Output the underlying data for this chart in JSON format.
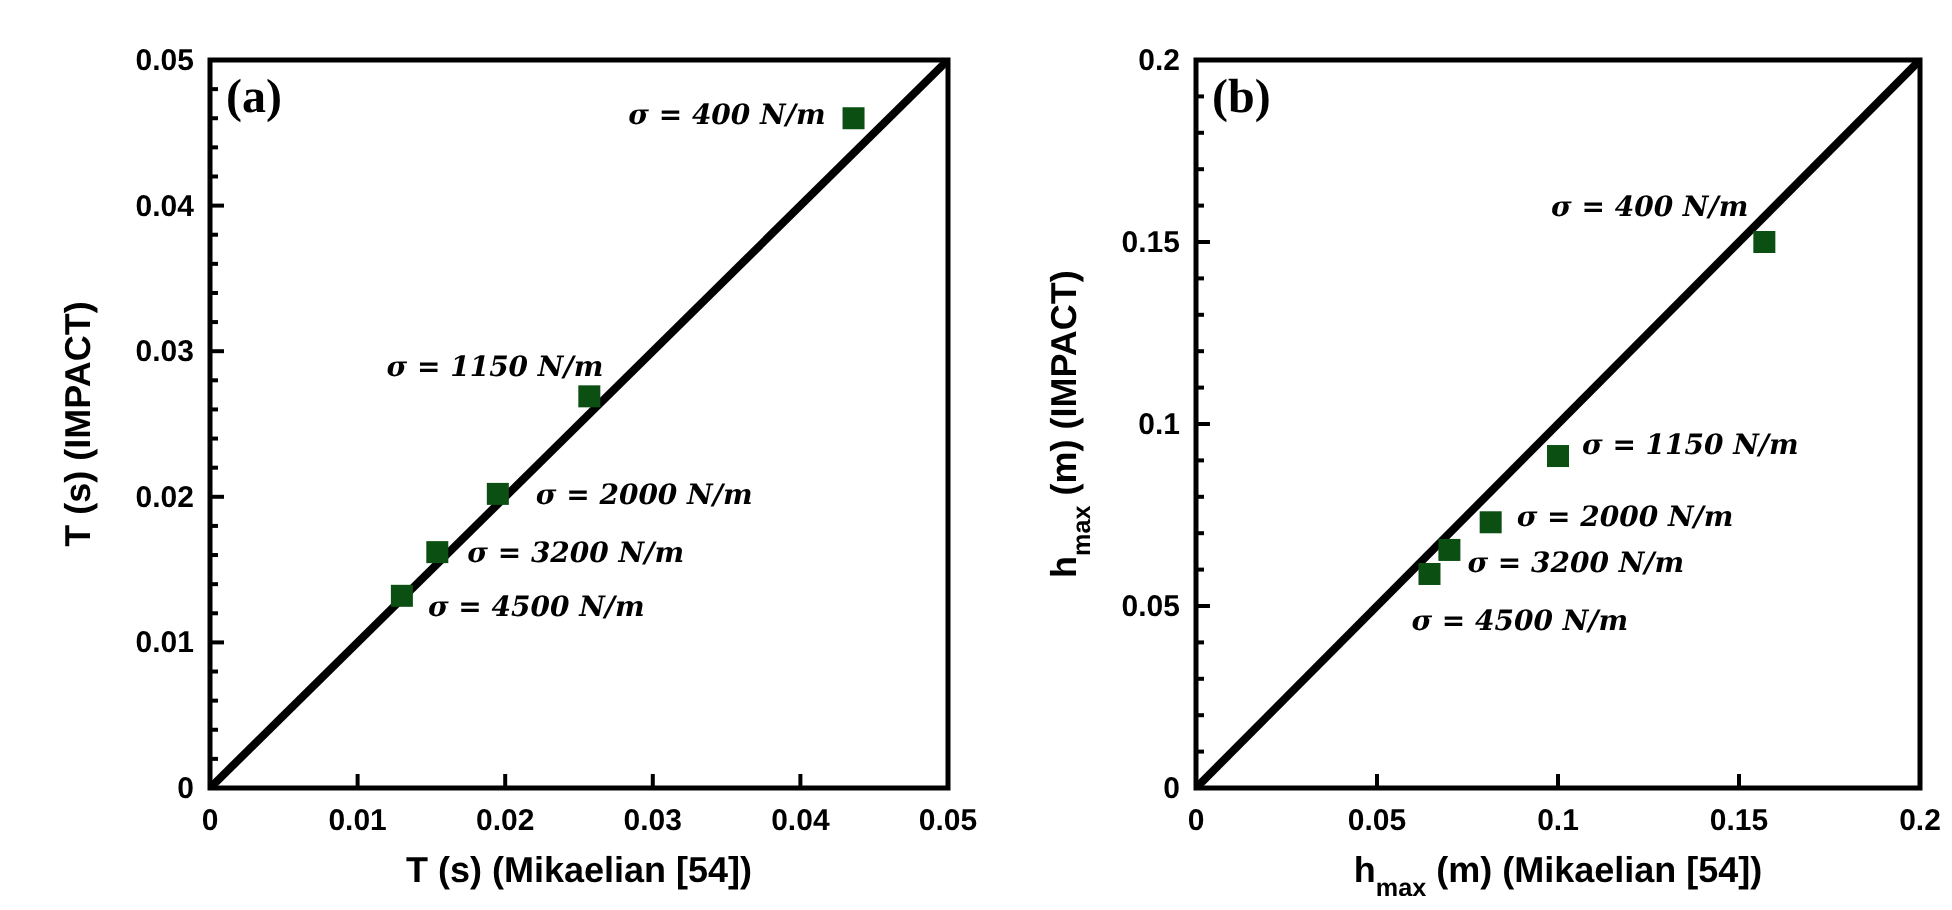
{
  "chart_data": [
    {
      "type": "scatter",
      "xlabel": "T (s) (Mikaelian [54])",
      "ylabel": "T (s) (IMPACT)",
      "xlim": [
        0,
        0.05
      ],
      "ylim": [
        0,
        0.05
      ],
      "xticks": [
        0,
        0.01,
        0.02,
        0.03,
        0.04,
        0.05
      ],
      "yticks": [
        0,
        {
          "value": 0.002,
          "label": null
        },
        {
          "value": 0.004,
          "label": null
        },
        {
          "value": 0.006,
          "label": null
        },
        {
          "value": 0.008,
          "label": null
        },
        0.01,
        {
          "value": 0.012,
          "label": null
        },
        {
          "value": 0.014,
          "label": null
        },
        {
          "value": 0.016,
          "label": null
        },
        {
          "value": 0.018,
          "label": null
        },
        0.02,
        {
          "value": 0.022,
          "label": null
        },
        {
          "value": 0.024,
          "label": null
        },
        {
          "value": 0.026,
          "label": null
        },
        {
          "value": 0.028,
          "label": null
        },
        0.03,
        {
          "value": 0.032,
          "label": null
        },
        {
          "value": 0.034,
          "label": null
        },
        {
          "value": 0.036,
          "label": null
        },
        {
          "value": 0.038,
          "label": null
        },
        0.04,
        {
          "value": 0.042,
          "label": null
        },
        {
          "value": 0.044,
          "label": null
        },
        {
          "value": 0.046,
          "label": null
        },
        {
          "value": 0.048,
          "label": null
        },
        0.05
      ],
      "grid": false,
      "series": [
        {
          "type": "line",
          "color": "#000000",
          "x": [
            0,
            0.05
          ],
          "values": [
            0,
            0.05
          ]
        },
        {
          "marker": "square",
          "color": "#0b5012",
          "x": [
            0.0436,
            0.0257,
            0.0195,
            0.0154,
            0.013
          ],
          "values": [
            0.046,
            0.0269,
            0.0202,
            0.0162,
            0.0132
          ]
        }
      ],
      "annotations": [
        "(a)",
        {
          "text": "σ = 400 N/m",
          "x": 0.0436,
          "y": 0.046
        },
        {
          "text": "σ = 1150 N/m",
          "x": 0.0257,
          "y": 0.0269
        },
        {
          "text": "σ = 2000 N/m",
          "x": 0.0195,
          "y": 0.0202
        },
        {
          "text": "σ = 3200 N/m",
          "x": 0.0154,
          "y": 0.0162
        },
        {
          "text": "σ = 4500 N/m",
          "x": 0.013,
          "y": 0.0132
        }
      ]
    },
    {
      "type": "scatter",
      "xlabel": "h$_{max}$ (m) (Mikaelian [54])",
      "ylabel": "h$_{max}$ (m) (IMPACT)",
      "xlim": [
        0,
        0.2
      ],
      "ylim": [
        0,
        0.2
      ],
      "xticks": [
        0,
        0.05,
        0.1,
        0.15,
        0.2
      ],
      "yticks": [
        0,
        {
          "value": 0.01,
          "label": null
        },
        {
          "value": 0.02,
          "label": null
        },
        {
          "value": 0.03,
          "label": null
        },
        {
          "value": 0.04,
          "label": null
        },
        0.05,
        {
          "value": 0.06,
          "label": null
        },
        {
          "value": 0.07,
          "label": null
        },
        {
          "value": 0.08,
          "label": null
        },
        {
          "value": 0.09,
          "label": null
        },
        0.1,
        {
          "value": 0.11,
          "label": null
        },
        {
          "value": 0.12,
          "label": null
        },
        {
          "value": 0.13,
          "label": null
        },
        {
          "value": 0.14,
          "label": null
        },
        0.15,
        {
          "value": 0.16,
          "label": null
        },
        {
          "value": 0.17,
          "label": null
        },
        {
          "value": 0.18,
          "label": null
        },
        {
          "value": 0.19,
          "label": null
        },
        0.2
      ],
      "grid": false,
      "series": [
        {
          "type": "line",
          "color": "#000000",
          "x": [
            0,
            0.2
          ],
          "values": [
            0,
            0.2
          ]
        },
        {
          "marker": "square",
          "color": "#0b5012",
          "x": [
            0.157,
            0.1,
            0.0814,
            0.07,
            0.0645
          ],
          "values": [
            0.15,
            0.0912,
            0.073,
            0.0654,
            0.0588
          ]
        }
      ],
      "annotations": [
        "(b)",
        {
          "text": "σ = 400 N/m",
          "x": 0.157,
          "y": 0.15
        },
        {
          "text": "σ = 1150 N/m",
          "x": 0.1,
          "y": 0.0912
        },
        {
          "text": "σ = 2000 N/m",
          "x": 0.0814,
          "y": 0.073
        },
        {
          "text": "σ = 3200 N/m",
          "x": 0.07,
          "y": 0.0654
        },
        {
          "text": "σ = 4500 N/m",
          "x": 0.0645,
          "y": 0.0588
        }
      ]
    }
  ]
}
